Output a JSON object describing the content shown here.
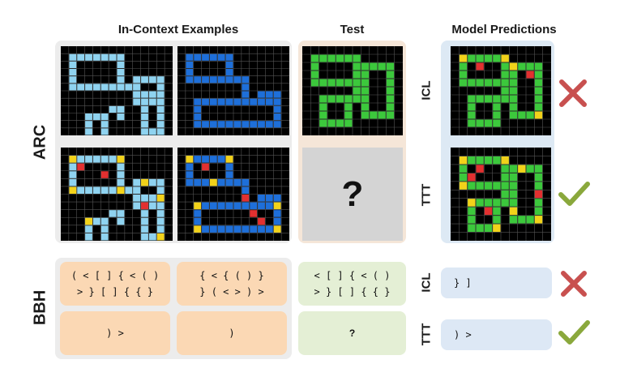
{
  "headers": {
    "in_context": "In-Context Examples",
    "test": "Test",
    "predictions": "Model Predictions"
  },
  "rows": {
    "arc": "ARC",
    "bbh": "BBH"
  },
  "methods": {
    "icl": "ICL",
    "ttt": "TTT"
  },
  "arc": {
    "test_unknown": "?"
  },
  "bbh": {
    "examples": [
      {
        "input": "( < [ ] { < ( )\n> } [ ] { { }",
        "output": ") >"
      },
      {
        "input": "{ < { ( ) }\n} ( < > ) >",
        "output": ")"
      }
    ],
    "test": {
      "input": "< [ ] { < ( )\n> } [ ] { { }",
      "output": "?"
    },
    "predictions": {
      "icl": "} ]",
      "ttt": ") >"
    }
  },
  "result_icons": {
    "icl": "cross-icon",
    "ttt": "check-icon"
  },
  "colors": {
    "icl_cross": "#c8504f",
    "ttt_check": "#8aa83c",
    "light_blue": "#8fd3f0",
    "dark_blue": "#1e6fd9",
    "green": "#3cc83c",
    "red": "#e23030",
    "yellow": "#f2d21a",
    "orange_box": "#fbd8b4",
    "green_box": "#e4efd5",
    "blue_box": "#dde8f5"
  }
}
